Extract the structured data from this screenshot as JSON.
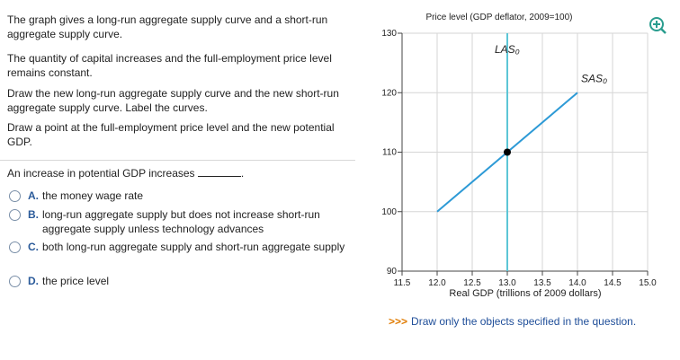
{
  "instructions": [
    "The graph gives a long-run aggregate supply curve and a short-run aggregate supply curve.",
    "The quantity of capital increases and the full-employment price level remains constant.",
    "Draw the new long-run aggregate supply curve and the new short-run aggregate supply curve. Label the curves.",
    "Draw a point at the full-employment price level and the new potential GDP."
  ],
  "question": {
    "text": "An increase in potential GDP increases",
    "end": ".",
    "options": [
      {
        "letter": "A.",
        "text": "the money wage rate"
      },
      {
        "letter": "B.",
        "text": "long-run aggregate supply but does not increase short-run aggregate supply unless technology advances"
      },
      {
        "letter": "C.",
        "text": "both long-run aggregate supply and short-run aggregate supply"
      },
      {
        "letter": "D.",
        "text": "the price level"
      }
    ]
  },
  "note": {
    "prefix": ">>>",
    "text": "Draw only the objects specified in the question."
  },
  "chart_data": {
    "type": "line",
    "y_label": "Price level (GDP deflator, 2009=100)",
    "x_label": "Real GDP (trillions of 2009 dollars)",
    "xlim": [
      11.5,
      15.0
    ],
    "xticks": [
      11.5,
      {
        "value": 12,
        "label": "12.0"
      },
      12.5,
      {
        "value": 13,
        "label": "13.0"
      },
      13.5,
      {
        "value": 14,
        "label": "14.0"
      },
      14.5,
      {
        "value": 15,
        "label": "15.0"
      }
    ],
    "ylim": [
      90,
      130
    ],
    "yticks": [
      90,
      100,
      110,
      120,
      130
    ],
    "grid": true,
    "series": [
      {
        "name": "LAS₀",
        "color": "#5cc6d6",
        "x": [
          13,
          13
        ],
        "values": [
          90,
          130
        ]
      },
      {
        "name": "SAS₀",
        "color": "#2d9ad6",
        "x": [
          12,
          14
        ],
        "values": [
          100,
          120
        ]
      }
    ],
    "points": [
      {
        "x": 13,
        "y": 110,
        "color": "#000000"
      }
    ]
  }
}
